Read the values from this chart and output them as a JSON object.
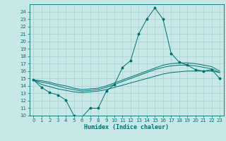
{
  "xlabel": "Humidex (Indice chaleur)",
  "bg_color": "#c8e8e8",
  "grid_color": "#a8d0d0",
  "line_color": "#007070",
  "xlim": [
    -0.5,
    23.5
  ],
  "ylim": [
    10,
    25
  ],
  "yticks": [
    10,
    11,
    12,
    13,
    14,
    15,
    16,
    17,
    18,
    19,
    20,
    21,
    22,
    23,
    24
  ],
  "xticks": [
    0,
    1,
    2,
    3,
    4,
    5,
    6,
    7,
    8,
    9,
    10,
    11,
    12,
    13,
    14,
    15,
    16,
    17,
    18,
    19,
    20,
    21,
    22,
    23
  ],
  "main_series": [
    14.8,
    13.8,
    13.1,
    12.8,
    12.1,
    10.0,
    9.8,
    11.0,
    11.0,
    13.3,
    14.2,
    16.5,
    17.4,
    21.0,
    23.0,
    24.5,
    23.0,
    18.4,
    17.2,
    16.8,
    16.2,
    16.0,
    16.2,
    15.0
  ],
  "line1": [
    14.8,
    14.2,
    13.9,
    13.6,
    13.4,
    13.2,
    13.1,
    13.2,
    13.3,
    13.5,
    13.8,
    14.1,
    14.4,
    14.7,
    15.0,
    15.3,
    15.6,
    15.8,
    15.9,
    16.0,
    16.0,
    16.0,
    16.0,
    15.8
  ],
  "line2": [
    14.8,
    14.5,
    14.3,
    14.0,
    13.7,
    13.5,
    13.3,
    13.4,
    13.5,
    13.8,
    14.2,
    14.6,
    15.0,
    15.4,
    15.8,
    16.2,
    16.5,
    16.7,
    16.8,
    16.8,
    16.7,
    16.5,
    16.3,
    15.8
  ],
  "line3": [
    14.8,
    14.7,
    14.5,
    14.2,
    14.0,
    13.7,
    13.5,
    13.6,
    13.7,
    14.0,
    14.4,
    14.8,
    15.2,
    15.6,
    16.0,
    16.4,
    16.8,
    17.0,
    17.1,
    17.1,
    17.0,
    16.8,
    16.6,
    16.0
  ],
  "xlabel_fontsize": 6,
  "tick_fontsize": 5,
  "lw": 0.7,
  "marker_size": 1.8
}
